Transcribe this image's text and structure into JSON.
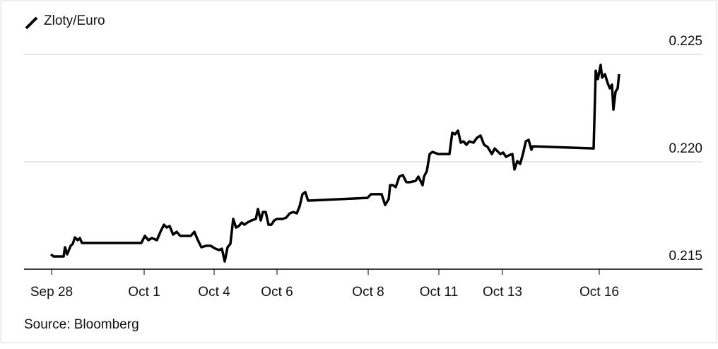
{
  "chart_data": {
    "type": "line",
    "title": "Zloty/Euro",
    "source": "Source: Bloomberg",
    "x": [
      9.5,
      10.5,
      14,
      14.5,
      15.25,
      16.5,
      17.25,
      18,
      19,
      19.75,
      20.5,
      41.5,
      42.75,
      44,
      45.25,
      47,
      48.5,
      49.5,
      50.5,
      51.5,
      52.75,
      54,
      55.25,
      57,
      59,
      60.25,
      61.5,
      62.75,
      64.5,
      66,
      67.75,
      69,
      70,
      71,
      72,
      73,
      74,
      75,
      76,
      77,
      78,
      79,
      80.5,
      82,
      82.75,
      83.75,
      84.5,
      85.5,
      86.5,
      87.5,
      88.5,
      89.5,
      91.5,
      92.75,
      94,
      95.25,
      96.5,
      97.5,
      98.5,
      99.5,
      100.5,
      121.5,
      122.75,
      126.5,
      127.75,
      129,
      129.5,
      130.5,
      131.5,
      132.75,
      134,
      135.25,
      136.5,
      138.5,
      139.5,
      141,
      141.5,
      142.5,
      143.5,
      144.5,
      146.5,
      148.5,
      150.5,
      151.5,
      152.5,
      153.5,
      154.5,
      155.5,
      156.5,
      157.5,
      159,
      160.25,
      161.5,
      162.75,
      164,
      165.5,
      166.5,
      168.5,
      169.5,
      170.5,
      171.5,
      172.75,
      173.5,
      174.5,
      175.5,
      176.5,
      177.5,
      178.5,
      179.5,
      180,
      201.5,
      202.25,
      203,
      204,
      204.5,
      205.5,
      206.5,
      207.25,
      208,
      208.5,
      209.25,
      210,
      210.5
    ],
    "series": [
      {
        "name": "Zloty/Euro",
        "color": "#000000",
        "values": [
          0.21569,
          0.21559,
          0.21559,
          0.21602,
          0.21569,
          0.21609,
          0.21618,
          0.21648,
          0.21635,
          0.21645,
          0.21622,
          0.21622,
          0.21655,
          0.21635,
          0.21645,
          0.21635,
          0.21681,
          0.21707,
          0.21694,
          0.21701,
          0.21661,
          0.21674,
          0.21655,
          0.21655,
          0.21655,
          0.21674,
          0.21635,
          0.21602,
          0.21609,
          0.21609,
          0.21595,
          0.21589,
          0.21595,
          0.21536,
          0.21602,
          0.21618,
          0.21734,
          0.21694,
          0.21701,
          0.21717,
          0.21707,
          0.21717,
          0.21727,
          0.21734,
          0.2178,
          0.21727,
          0.21766,
          0.21766,
          0.21707,
          0.21707,
          0.21727,
          0.21734,
          0.21734,
          0.2174,
          0.2176,
          0.21766,
          0.2176,
          0.21793,
          0.21849,
          0.21859,
          0.21819,
          0.21832,
          0.21849,
          0.21849,
          0.21799,
          0.21826,
          0.21891,
          0.21891,
          0.21882,
          0.21931,
          0.21938,
          0.21905,
          0.21905,
          0.21911,
          0.21931,
          0.21891,
          0.21931,
          0.21957,
          0.22036,
          0.22046,
          0.22036,
          0.22036,
          0.22036,
          0.22135,
          0.22128,
          0.22145,
          0.22089,
          0.22095,
          0.22079,
          0.22095,
          0.22089,
          0.22112,
          0.22122,
          0.22079,
          0.22069,
          0.22036,
          0.22062,
          0.22036,
          0.22043,
          0.22023,
          0.2203,
          0.22036,
          0.21964,
          0.22003,
          0.2199,
          0.22036,
          0.22095,
          0.22102,
          0.22056,
          0.22072,
          0.22062,
          0.22424,
          0.22385,
          0.22451,
          0.22392,
          0.22408,
          0.22365,
          0.22342,
          0.22359,
          0.22243,
          0.22326,
          0.22342,
          0.22408
        ]
      }
    ],
    "xlim": [
      0,
      240
    ],
    "xticks": [
      {
        "value": 9.75,
        "label": "Sep 28"
      },
      {
        "value": 42.5,
        "label": "Oct 1"
      },
      {
        "value": 67.25,
        "label": "Oct 4"
      },
      {
        "value": 89.5,
        "label": "Oct 6"
      },
      {
        "value": 121.75,
        "label": "Oct 8"
      },
      {
        "value": 146.75,
        "label": "Oct 11"
      },
      {
        "value": 169.25,
        "label": "Oct 13"
      },
      {
        "value": 203.5,
        "label": "Oct 16"
      }
    ],
    "ylim": [
      0.215,
      0.225
    ],
    "yticks": [
      0.215,
      {
        "value": 0.22,
        "label": "0.220"
      },
      0.225
    ],
    "grid": true
  }
}
